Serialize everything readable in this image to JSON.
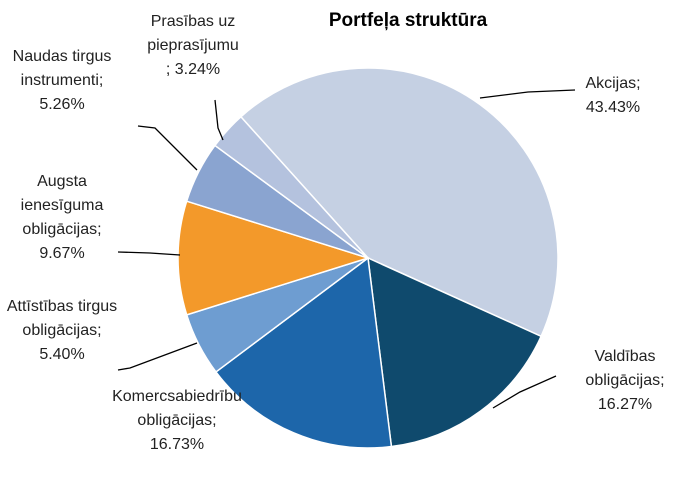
{
  "chart_data": {
    "type": "pie",
    "title": "Portfeļa struktūra",
    "categories": [
      "Akcijas;",
      "Valdības obligācijas;",
      "Komercsabiedrību obligācijas;",
      "Attīstības tirgus obligācijas;",
      "Augsta ienesīguma obligācijas;",
      "Naudas tirgus instrumenti;",
      "Prasības uz pieprasījumu"
    ],
    "values": [
      43.43,
      16.27,
      16.73,
      5.4,
      9.67,
      5.26,
      3.24
    ],
    "value_labels": [
      "43.43%",
      "16.27%",
      "16.73%",
      "5.40%",
      "9.67%",
      "5.26%",
      "; 3.24%"
    ],
    "colors": [
      "#c5d0e3",
      "#0f4a6d",
      "#1d66aa",
      "#6e9dd1",
      "#f3992a",
      "#8aa4d0",
      "#b4c2de"
    ]
  }
}
